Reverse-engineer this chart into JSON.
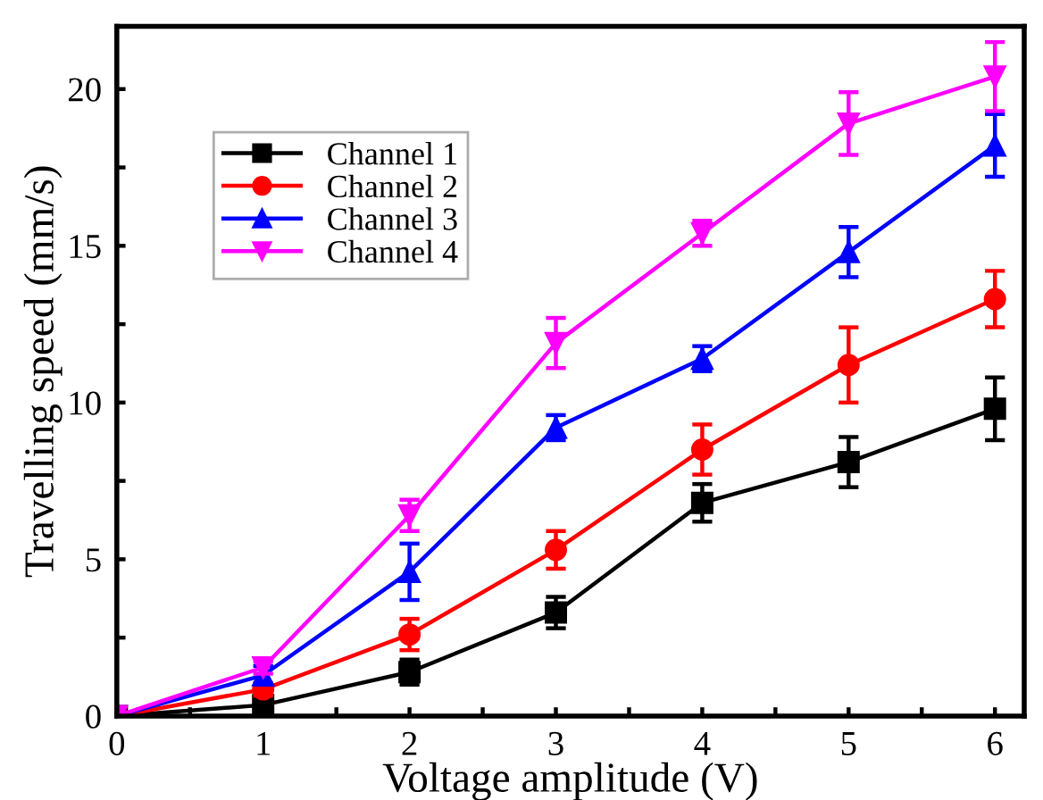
{
  "chart_data": {
    "type": "line",
    "xlabel": "Voltage amplitude (V)",
    "ylabel": "Travelling speed (mm/s)",
    "x": [
      0,
      1,
      2,
      3,
      4,
      5,
      6
    ],
    "series": [
      {
        "name": "Channel 1",
        "color": "#000000",
        "marker": "square",
        "values": [
          0,
          0.35,
          1.4,
          3.3,
          6.8,
          8.1,
          9.8
        ],
        "errors": [
          0,
          0.2,
          0.4,
          0.5,
          0.6,
          0.8,
          1.0
        ]
      },
      {
        "name": "Channel 2",
        "color": "#ff0000",
        "marker": "circle",
        "values": [
          0,
          0.85,
          2.6,
          5.3,
          8.5,
          11.2,
          13.3
        ],
        "errors": [
          0,
          0.2,
          0.5,
          0.6,
          0.8,
          1.2,
          0.9
        ]
      },
      {
        "name": "Channel 3",
        "color": "#0000ff",
        "marker": "triangle",
        "values": [
          0,
          1.3,
          4.6,
          9.2,
          11.4,
          14.8,
          18.2
        ],
        "errors": [
          0,
          0.3,
          0.9,
          0.4,
          0.4,
          0.8,
          1.0
        ]
      },
      {
        "name": "Channel 4",
        "color": "#ff00ff",
        "marker": "triangle_down",
        "values": [
          0,
          1.55,
          6.4,
          11.9,
          15.4,
          18.9,
          20.4
        ],
        "errors": [
          0,
          0.2,
          0.5,
          0.8,
          0.4,
          1.0,
          1.1
        ]
      }
    ],
    "xlim": [
      0,
      6.2
    ],
    "ylim": [
      0,
      22
    ],
    "xticks": [
      0,
      {
        "value": 0.5,
        "label": null
      },
      1,
      {
        "value": 1.5,
        "label": null
      },
      2,
      {
        "value": 2.5,
        "label": null
      },
      3,
      {
        "value": 3.5,
        "label": null
      },
      4,
      {
        "value": 4.5,
        "label": null
      },
      5,
      {
        "value": 5.5,
        "label": null
      },
      6
    ],
    "yticks": [
      0,
      {
        "value": 2.5,
        "label": null
      },
      5,
      {
        "value": 7.5,
        "label": null
      },
      10,
      {
        "value": 12.5,
        "label": null
      },
      15,
      {
        "value": 17.5,
        "label": null
      },
      20
    ],
    "grid": false,
    "legend": "top left"
  }
}
